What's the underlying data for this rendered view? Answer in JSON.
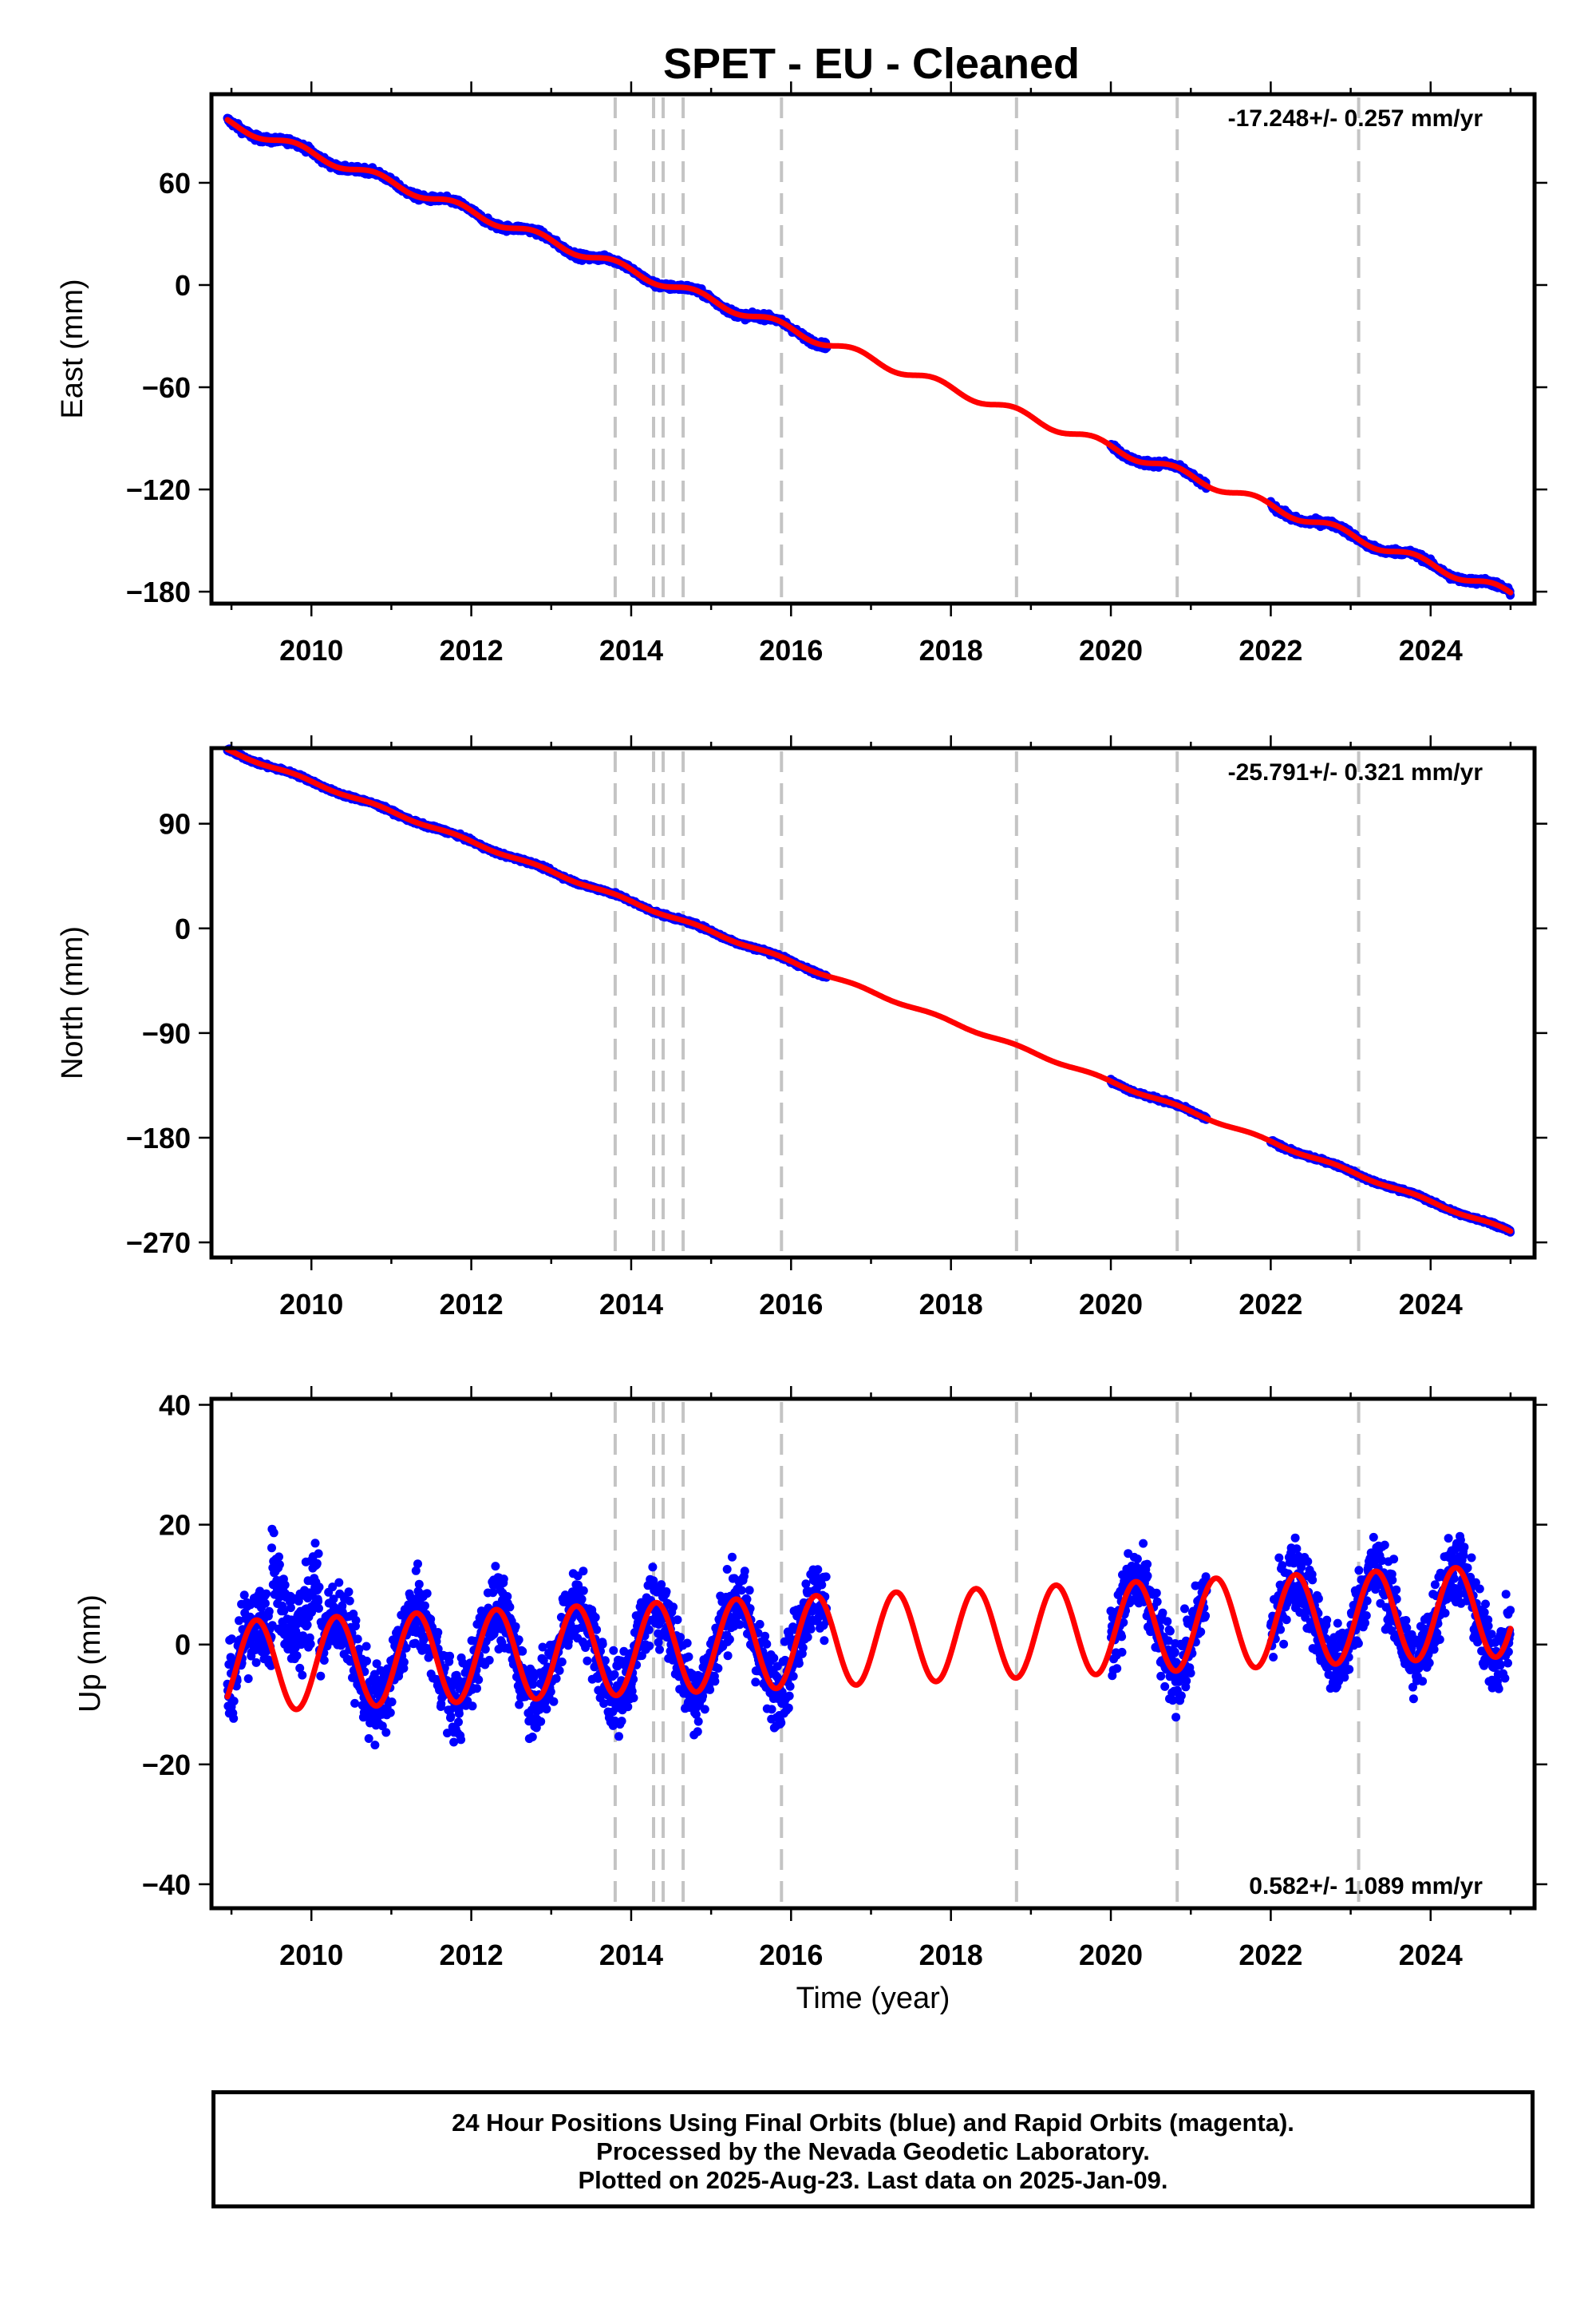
{
  "title": "SPET  - EU - Cleaned",
  "footer": {
    "line1": "24 Hour Positions Using Final Orbits (blue) and Rapid Orbits (magenta).",
    "line2": "Processed by the Nevada Geodetic Laboratory.",
    "line3": "Plotted on 2025-Aug-23. Last data on 2025-Jan-09."
  },
  "colors": {
    "data_points": "#0000ff",
    "fit_line": "#ff0000",
    "event_lines": "#c4c4c4"
  },
  "chart_data": [
    {
      "type": "scatter",
      "panel": "east",
      "ylabel": "East (mm)",
      "xlabel": "",
      "rate_label": "-17.248+/- 0.257 mm/yr",
      "xlim": [
        2008.75,
        2025.3
      ],
      "ylim": [
        -187,
        112
      ],
      "x_ticks": [
        2010,
        2012,
        2014,
        2016,
        2018,
        2020,
        2022,
        2024
      ],
      "y_ticks": [
        60,
        0,
        -60,
        -120,
        -180
      ],
      "y_tick_labels": [
        "60",
        "0",
        "−60",
        "−120",
        "−180"
      ],
      "event_lines": [
        2013.8,
        2014.28,
        2014.4,
        2014.65,
        2015.88,
        2018.82,
        2020.83,
        2023.1
      ],
      "data_segments": [
        [
          2008.95,
          2016.45
        ],
        [
          2020.0,
          2021.2
        ],
        [
          2022.0,
          2025.0
        ]
      ],
      "series": [
        {
          "name": "Final Orbits (blue)",
          "fit": {
            "a": -0.3,
            "r": -17.248,
            "t0": 2014.5,
            "A": 2.6,
            "phase": 2.8,
            "noise": 2.2
          }
        }
      ]
    },
    {
      "type": "scatter",
      "panel": "north",
      "ylabel": "North (mm)",
      "xlabel": "",
      "rate_label": "-25.791+/- 0.321 mm/yr",
      "xlim": [
        2008.75,
        2025.3
      ],
      "ylim": [
        -283,
        155
      ],
      "x_ticks": [
        2010,
        2012,
        2014,
        2016,
        2018,
        2020,
        2022,
        2024
      ],
      "y_ticks": [
        90,
        0,
        -90,
        -180,
        -270
      ],
      "y_tick_labels": [
        "90",
        "0",
        "−90",
        "−180",
        "−270"
      ],
      "event_lines": [
        2013.8,
        2014.28,
        2014.4,
        2014.65,
        2015.88,
        2018.82,
        2020.83,
        2023.1
      ],
      "data_segments": [
        [
          2008.95,
          2016.45
        ],
        [
          2020.0,
          2021.2
        ],
        [
          2022.0,
          2025.0
        ]
      ],
      "series": [
        {
          "name": "Final Orbits (blue)",
          "fit": {
            "a": 10.0,
            "r": -25.791,
            "t0": 2014.5,
            "A": 1.2,
            "phase": 2.8,
            "noise": 1.8
          }
        }
      ]
    },
    {
      "type": "scatter",
      "panel": "up",
      "ylabel": "Up (mm)",
      "xlabel": "Time (year)",
      "rate_label": "0.582+/- 1.089 mm/yr",
      "xlim": [
        2008.75,
        2025.3
      ],
      "ylim": [
        -44,
        41
      ],
      "x_ticks": [
        2010,
        2012,
        2014,
        2016,
        2018,
        2020,
        2022,
        2024
      ],
      "y_ticks": [
        40,
        20,
        0,
        -20,
        -40
      ],
      "y_tick_labels": [
        "40",
        "20",
        "0",
        "−20",
        "−40"
      ],
      "event_lines": [
        2013.8,
        2014.28,
        2014.4,
        2014.65,
        2015.88,
        2018.82,
        2020.83,
        2023.1
      ],
      "data_segments": [
        [
          2008.95,
          2016.45
        ],
        [
          2020.0,
          2021.2
        ],
        [
          2022.0,
          2025.0
        ]
      ],
      "series": [
        {
          "name": "Final Orbits (blue)",
          "fit": {
            "a": -0.5,
            "r": 0.582,
            "t0": 2014.5,
            "A": 7.6,
            "phase": -0.4,
            "noise": 4.0
          }
        }
      ]
    }
  ]
}
